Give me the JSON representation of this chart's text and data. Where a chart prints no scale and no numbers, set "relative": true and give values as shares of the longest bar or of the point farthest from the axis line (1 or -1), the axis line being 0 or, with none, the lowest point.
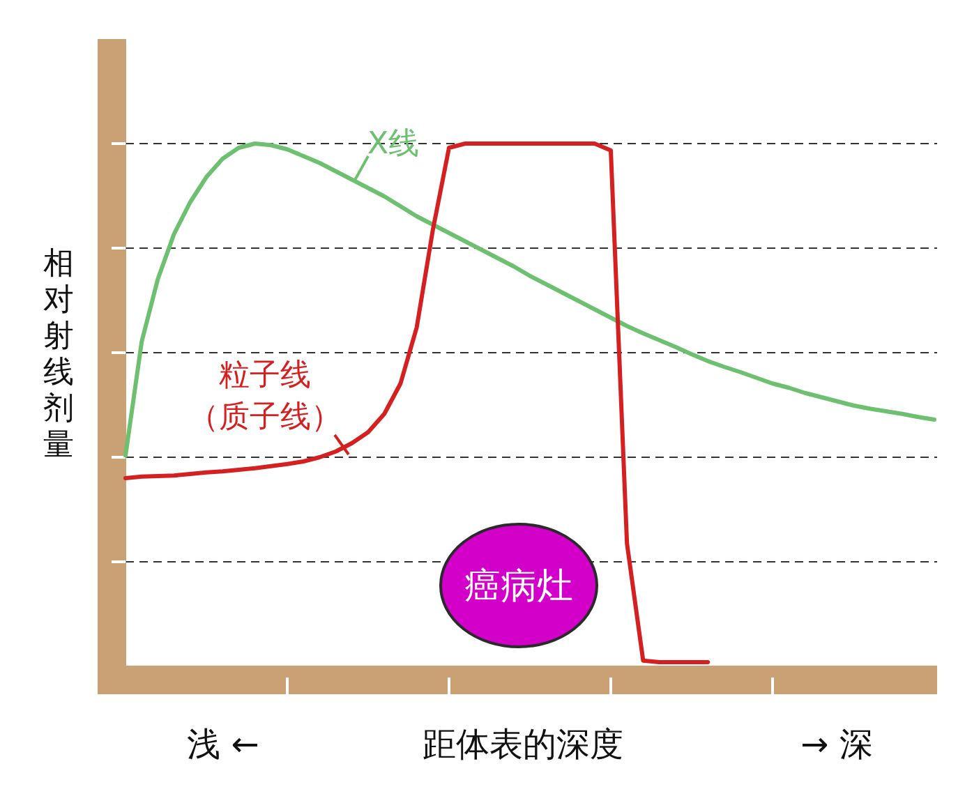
{
  "chart_data": {
    "type": "line",
    "relative": true,
    "legend": false,
    "xlabel": "距体表的深度",
    "ylabel": "相对射线剂量",
    "categories": [
      null,
      null,
      null,
      null,
      null,
      null,
      null,
      null,
      null,
      null,
      null,
      null,
      null,
      null,
      null,
      null,
      null,
      null,
      null,
      null,
      null,
      null,
      null,
      null,
      null,
      null,
      null,
      null,
      null,
      null,
      null,
      null,
      null,
      null,
      null,
      null,
      null,
      null,
      null,
      null,
      null,
      null,
      null,
      null,
      null,
      null,
      null,
      null,
      null,
      null,
      null
    ],
    "series": [
      {
        "name": "X线",
        "color": "#6cc070",
        "values": [
          0.403,
          0.621,
          0.741,
          0.827,
          0.888,
          0.936,
          0.971,
          0.992,
          1,
          0.997,
          0.989,
          0.976,
          0.963,
          0.947,
          0.931,
          0.915,
          0.899,
          0.88,
          0.861,
          0.845,
          0.829,
          0.813,
          0.797,
          0.781,
          0.765,
          0.747,
          0.731,
          0.715,
          0.699,
          0.683,
          0.667,
          0.651,
          0.637,
          0.624,
          0.611,
          0.597,
          0.584,
          0.573,
          0.563,
          0.552,
          0.541,
          0.533,
          0.523,
          0.515,
          0.507,
          0.499,
          0.493,
          0.488,
          0.483,
          0.477,
          0.472
        ]
      },
      {
        "name": "粒子线",
        "color": "#d42020",
        "values": [
          0.36,
          0.363,
          0.364,
          0.365,
          0.368,
          0.371,
          0.373,
          0.376,
          0.379,
          0.383,
          0.387,
          0.392,
          0.4,
          0.411,
          0.427,
          0.448,
          0.483,
          0.541,
          0.648,
          0.835,
          0.992,
          1,
          1,
          1,
          1,
          1,
          1,
          1,
          1,
          1,
          0.987,
          0.235,
          0.011,
          0.008,
          0.008,
          0.008,
          0.008,
          null,
          null,
          null,
          null,
          null,
          null,
          null,
          null,
          null,
          null,
          null,
          null,
          null,
          null
        ]
      }
    ],
    "grid": "y",
    "annotations": [
      "（质子线）",
      "癌病灶",
      "浅 ←",
      "→ 深"
    ]
  }
}
